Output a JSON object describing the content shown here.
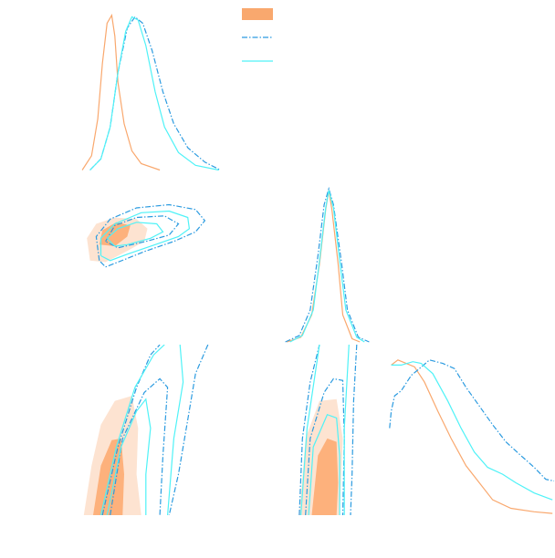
{
  "chart_data": {
    "type": "corner",
    "legend": true,
    "series": [
      {
        "color": "#f9a86e",
        "style": "filled",
        "fill_colors": [
          "#fde3d1",
          "#fdb17c"
        ],
        "marginals": [
          {
            "x": [
              0.03,
              0.09,
              0.13,
              0.16,
              0.19,
              0.22,
              0.24,
              0.26,
              0.3,
              0.35,
              0.41,
              0.53
            ],
            "y": [
              0.02,
              0.11,
              0.34,
              0.69,
              0.94,
              0.99,
              0.86,
              0.57,
              0.31,
              0.14,
              0.06,
              0.02
            ]
          },
          {
            "x": [
              0.29,
              0.38,
              0.45,
              0.5,
              0.54,
              0.56,
              0.58,
              0.62,
              0.65,
              0.71,
              0.76
            ],
            "y": [
              0,
              0.03,
              0.17,
              0.49,
              0.83,
              0.95,
              0.83,
              0.49,
              0.17,
              0.02,
              0
            ]
          },
          {
            "x": [
              0.02,
              0.06,
              0.11,
              0.16,
              0.22,
              0.3,
              0.38,
              0.47,
              0.55,
              0.63,
              0.74,
              0.88,
              0.99
            ],
            "y": [
              0.88,
              0.91,
              0.89,
              0.87,
              0.78,
              0.61,
              0.45,
              0.29,
              0.19,
              0.09,
              0.04,
              0.02,
              0.01
            ]
          }
        ],
        "contours": [
          {
            "params": [
              0,
              1
            ],
            "levels": [
              {
                "x": [
                  0.08,
                  0.06,
                  0.12,
                  0.24,
                  0.38,
                  0.45,
                  0.43,
                  0.32,
                  0.18
                ],
                "y": [
                  0.51,
                  0.65,
                  0.74,
                  0.78,
                  0.77,
                  0.71,
                  0.63,
                  0.57,
                  0.5
                ]
              },
              {
                "x": [
                  0.14,
                  0.16,
                  0.25,
                  0.34,
                  0.32,
                  0.24
                ],
                "y": [
                  0.61,
                  0.7,
                  0.75,
                  0.73,
                  0.66,
                  0.6
                ]
              }
            ]
          },
          {
            "params": [
              0,
              2
            ],
            "levels": [
              {
                "x": [
                  0.04,
                  0.09,
                  0.15,
                  0.24,
                  0.35,
                  0.39,
                  0.38,
                  0.41
                ],
                "y": [
                  0,
                  0.29,
                  0.53,
                  0.67,
                  0.7,
                  0.51,
                  0.24,
                  0
                ]
              },
              {
                "x": [
                  0.1,
                  0.15,
                  0.22,
                  0.28,
                  0.3,
                  0.29
                ],
                "y": [
                  0,
                  0.29,
                  0.44,
                  0.45,
                  0.24,
                  0
                ]
              }
            ]
          },
          {
            "params": [
              1,
              2
            ],
            "levels": [
              {
                "x": [
                  0.37,
                  0.41,
                  0.5,
                  0.61,
                  0.65,
                  0.63
                ],
                "y": [
                  0,
                  0.45,
                  0.67,
                  0.68,
                  0.45,
                  0
                ]
              },
              {
                "x": [
                  0.45,
                  0.49,
                  0.55,
                  0.61,
                  0.62,
                  0.61
                ],
                "y": [
                  0,
                  0.35,
                  0.45,
                  0.43,
                  0.19,
                  0
                ]
              }
            ]
          }
        ]
      },
      {
        "color": "#2b9be0",
        "style": "dashdot",
        "marginals": [
          {
            "x": [
              0.08,
              0.15,
              0.21,
              0.26,
              0.32,
              0.37,
              0.42,
              0.48,
              0.55,
              0.62,
              0.71,
              0.82,
              0.92
            ],
            "y": [
              0.02,
              0.09,
              0.29,
              0.63,
              0.91,
              0.98,
              0.94,
              0.77,
              0.51,
              0.31,
              0.16,
              0.07,
              0.02
            ]
          },
          {
            "x": [
              0.28,
              0.37,
              0.44,
              0.49,
              0.53,
              0.56,
              0.59,
              0.64,
              0.68,
              0.75,
              0.82
            ],
            "y": [
              0,
              0.04,
              0.2,
              0.54,
              0.86,
              0.96,
              0.86,
              0.51,
              0.2,
              0.03,
              0
            ]
          },
          {
            "x": [
              0.01,
              0.02,
              0.04,
              0.08,
              0.14,
              0.19,
              0.25,
              0.33,
              0.4,
              0.47,
              0.55,
              0.63,
              0.71,
              0.8,
              0.88,
              0.95,
              1
            ],
            "y": [
              0.51,
              0.61,
              0.7,
              0.73,
              0.82,
              0.86,
              0.91,
              0.89,
              0.86,
              0.75,
              0.64,
              0.53,
              0.43,
              0.35,
              0.28,
              0.21,
              0.2
            ]
          }
        ],
        "contours": [
          {
            "params": [
              0,
              1
            ],
            "levels": [
              {
                "x": [
                  0.14,
                  0.12,
                  0.21,
                  0.38,
                  0.59,
                  0.76,
                  0.82,
                  0.76,
                  0.62,
                  0.44,
                  0.26,
                  0.18,
                  0.14
                ],
                "y": [
                  0.51,
                  0.66,
                  0.77,
                  0.84,
                  0.86,
                  0.83,
                  0.76,
                  0.69,
                  0.63,
                  0.57,
                  0.5,
                  0.47,
                  0.51
                ]
              },
              {
                "x": [
                  0.18,
                  0.24,
                  0.38,
                  0.56,
                  0.65,
                  0.59,
                  0.44,
                  0.26,
                  0.18
                ],
                "y": [
                  0.63,
                  0.73,
                  0.78,
                  0.79,
                  0.74,
                  0.67,
                  0.63,
                  0.59,
                  0.63
                ]
              }
            ]
          },
          {
            "params": [
              0,
              2
            ],
            "levels": [
              {
                "x": [
                  0.16,
                  0.26,
                  0.38,
                  0.47,
                  0.53,
                  null,
                  0.84,
                  0.76,
                  0.71,
                  0.65,
                  0.59
                ],
                "y": [
                  0,
                  0.4,
                  0.75,
                  0.94,
                  1,
                  null,
                  1,
                  0.83,
                  0.56,
                  0.24,
                  0
                ]
              },
              {
                "x": [
                  0.21,
                  0.29,
                  0.43,
                  0.53,
                  0.58,
                  0.55,
                  0.53
                ],
                "y": [
                  0,
                  0.45,
                  0.72,
                  0.8,
                  0.75,
                  0.35,
                  0
                ]
              }
            ]
          },
          {
            "params": [
              1,
              2
            ],
            "levels": [
              {
                "x": [
                  0.37,
                  0.39,
                  0.44,
                  0.5,
                  null,
                  0.74,
                  0.72,
                  0.71,
                  0.7
                ],
                "y": [
                  0,
                  0.45,
                  0.78,
                  1,
                  null,
                  1,
                  0.67,
                  0.24,
                  0
                ]
              },
              {
                "x": [
                  0.41,
                  0.44,
                  0.53,
                  0.59,
                  0.65,
                  0.66,
                  0.65
                ],
                "y": [
                  0,
                  0.45,
                  0.72,
                  0.8,
                  0.79,
                  0.45,
                  0
                ]
              }
            ]
          }
        ]
      },
      {
        "color": "#4ff2f7",
        "style": "solid",
        "marginals": [
          {
            "x": [
              0.08,
              0.15,
              0.21,
              0.26,
              0.31,
              0.35,
              0.39,
              0.44,
              0.5,
              0.56,
              0.65,
              0.76,
              0.91
            ],
            "y": [
              0.02,
              0.09,
              0.29,
              0.63,
              0.89,
              0.98,
              0.96,
              0.8,
              0.51,
              0.29,
              0.13,
              0.05,
              0.02
            ]
          },
          {
            "x": [
              0.31,
              0.39,
              0.46,
              0.5,
              0.54,
              0.56,
              0.59,
              0.63,
              0.67,
              0.74,
              0.79
            ],
            "y": [
              0,
              0.04,
              0.2,
              0.51,
              0.84,
              0.95,
              0.84,
              0.51,
              0.2,
              0.03,
              0
            ]
          },
          {
            "x": [
              0.02,
              0.08,
              0.15,
              0.2,
              0.27,
              0.36,
              0.44,
              0.52,
              0.6,
              0.69,
              0.77,
              0.88,
              0.99
            ],
            "y": [
              0.88,
              0.88,
              0.9,
              0.89,
              0.83,
              0.67,
              0.51,
              0.37,
              0.28,
              0.24,
              0.19,
              0.13,
              0.09
            ]
          }
        ],
        "contours": [
          {
            "params": [
              0,
              1
            ],
            "levels": [
              {
                "x": [
                  0.15,
                  0.15,
                  0.24,
                  0.41,
                  0.59,
                  0.71,
                  0.72,
                  0.65,
                  0.5,
                  0.32,
                  0.21,
                  0.15
                ],
                "y": [
                  0.54,
                  0.65,
                  0.74,
                  0.81,
                  0.82,
                  0.78,
                  0.71,
                  0.66,
                  0.61,
                  0.55,
                  0.51,
                  0.54
                ]
              },
              {
                "x": [
                  0.19,
                  0.26,
                  0.38,
                  0.51,
                  0.55,
                  0.47,
                  0.32,
                  0.24,
                  0.19
                ],
                "y": [
                  0.65,
                  0.71,
                  0.75,
                  0.74,
                  0.69,
                  0.65,
                  0.61,
                  0.6,
                  0.65
                ]
              }
            ]
          },
          {
            "params": [
              0,
              2
            ],
            "levels": [
              {
                "x": [
                  0.15,
                  0.25,
                  0.37,
                  0.49,
                  0.56,
                  null,
                  0.66,
                  0.68,
                  0.62,
                  0.58
                ],
                "y": [
                  0,
                  0.4,
                  0.75,
                  0.94,
                  1,
                  null,
                  1,
                  0.78,
                  0.45,
                  0
                ]
              },
              {
                "x": [
                  0.19,
                  0.28,
                  0.38,
                  0.44,
                  0.47,
                  0.44,
                  0.44
                ],
                "y": [
                  0,
                  0.4,
                  0.61,
                  0.68,
                  0.51,
                  0.24,
                  0
                ]
              }
            ]
          },
          {
            "params": [
              1,
              2
            ],
            "levels": [
              {
                "x": [
                  0.38,
                  0.42,
                  0.5,
                  null,
                  0.69,
                  0.66,
                  0.66
                ],
                "y": [
                  0,
                  0.51,
                  1,
                  null,
                  1,
                  0.51,
                  0
                ]
              },
              {
                "x": [
                  0.43,
                  0.46,
                  0.55,
                  0.61,
                  0.63,
                  0.63
                ],
                "y": [
                  0,
                  0.4,
                  0.59,
                  0.57,
                  0.35,
                  0
                ]
              }
            ]
          }
        ]
      }
    ]
  }
}
